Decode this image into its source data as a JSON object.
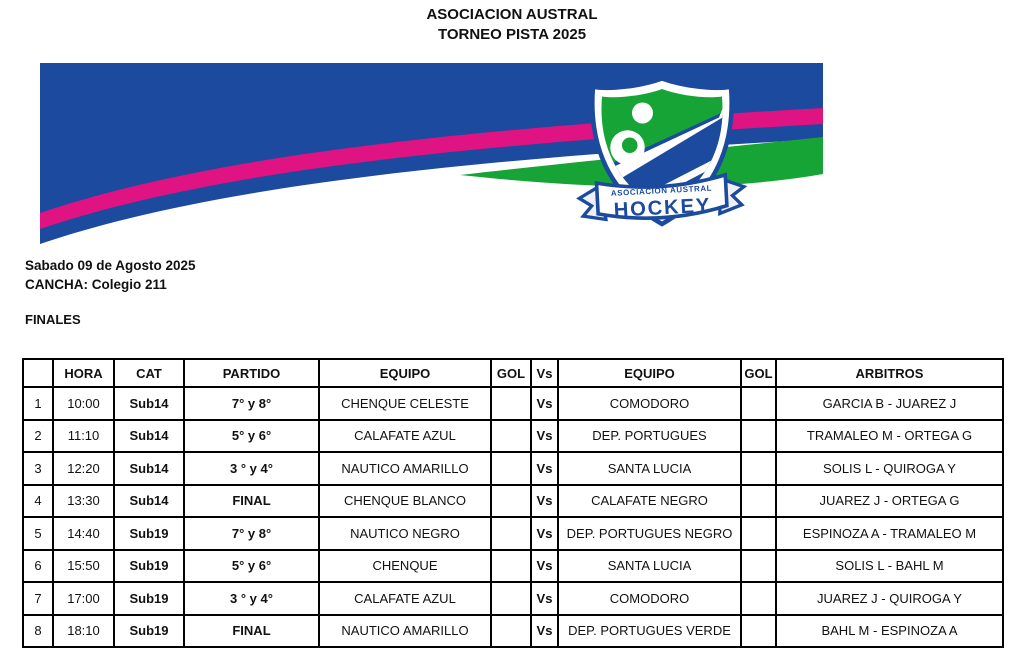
{
  "header": {
    "title_line1": "ASOCIACION AUSTRAL",
    "title_line2": "TORNEO PISTA 2025"
  },
  "banner": {
    "colors": {
      "blue": "#1b4a9e",
      "pink": "#e01383",
      "green": "#17a437"
    },
    "logo": {
      "line1": "ASOCIACIÓN AUSTRAL",
      "line2": "HOCKEY"
    }
  },
  "info": {
    "date": "Sabado 09 de Agosto 2025",
    "venue": "CANCHA: Colegio 211",
    "section": "FINALES"
  },
  "table": {
    "columns": [
      "",
      "HORA",
      "CAT",
      "PARTIDO",
      "EQUIPO",
      "GOL",
      "Vs",
      "EQUIPO",
      "GOL",
      "ARBITROS"
    ],
    "rows": [
      {
        "num": "1",
        "hora": "10:00",
        "cat": "Sub14",
        "partido": "7° y 8°",
        "equipo1": "CHENQUE CELESTE",
        "gol1": "",
        "vs": "Vs",
        "equipo2": "COMODORO",
        "gol2": "",
        "arbitros": "GARCIA B - JUAREZ J"
      },
      {
        "num": "2",
        "hora": "11:10",
        "cat": "Sub14",
        "partido": "5° y 6°",
        "equipo1": "CALAFATE AZUL",
        "gol1": "",
        "vs": "Vs",
        "equipo2": "DEP. PORTUGUES",
        "gol2": "",
        "arbitros": "TRAMALEO M - ORTEGA G"
      },
      {
        "num": "3",
        "hora": "12:20",
        "cat": "Sub14",
        "partido": "3 ° y 4°",
        "equipo1": "NAUTICO AMARILLO",
        "gol1": "",
        "vs": "Vs",
        "equipo2": "SANTA LUCIA",
        "gol2": "",
        "arbitros": "SOLIS L - QUIROGA Y"
      },
      {
        "num": "4",
        "hora": "13:30",
        "cat": "Sub14",
        "partido": "FINAL",
        "equipo1": "CHENQUE BLANCO",
        "gol1": "",
        "vs": "Vs",
        "equipo2": "CALAFATE NEGRO",
        "gol2": "",
        "arbitros": "JUAREZ J - ORTEGA G"
      },
      {
        "num": "5",
        "hora": "14:40",
        "cat": "Sub19",
        "partido": "7° y 8°",
        "equipo1": "NAUTICO NEGRO",
        "gol1": "",
        "vs": "Vs",
        "equipo2": "DEP. PORTUGUES NEGRO",
        "gol2": "",
        "arbitros": "ESPINOZA A - TRAMALEO M"
      },
      {
        "num": "6",
        "hora": "15:50",
        "cat": "Sub19",
        "partido": "5° y 6°",
        "equipo1": "CHENQUE",
        "gol1": "",
        "vs": "Vs",
        "equipo2": "SANTA LUCIA",
        "gol2": "",
        "arbitros": "SOLIS L - BAHL M"
      },
      {
        "num": "7",
        "hora": "17:00",
        "cat": "Sub19",
        "partido": "3 ° y 4°",
        "equipo1": "CALAFATE AZUL",
        "gol1": "",
        "vs": "Vs",
        "equipo2": "COMODORO",
        "gol2": "",
        "arbitros": "JUAREZ J - QUIROGA Y"
      },
      {
        "num": "8",
        "hora": "18:10",
        "cat": "Sub19",
        "partido": "FINAL",
        "equipo1": "NAUTICO AMARILLO",
        "gol1": "",
        "vs": "Vs",
        "equipo2": "DEP. PORTUGUES VERDE",
        "gol2": "",
        "arbitros": "BAHL M - ESPINOZA A"
      }
    ]
  }
}
